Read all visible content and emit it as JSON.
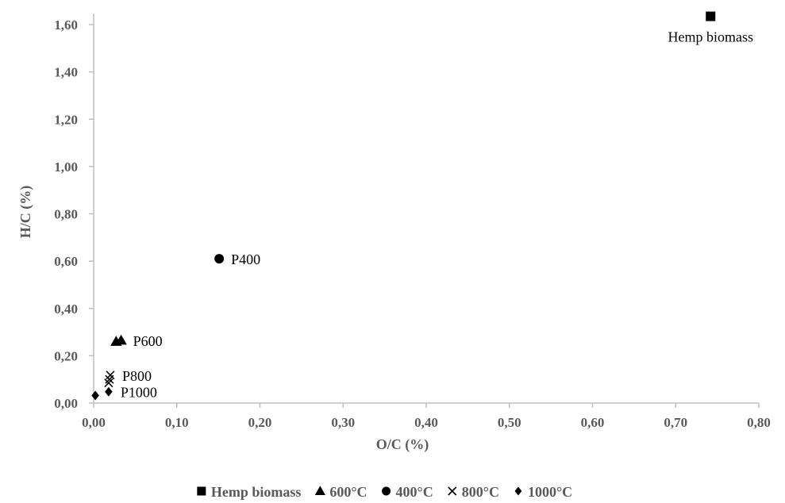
{
  "chart_data": {
    "type": "scatter",
    "xlabel": "O/C (%)",
    "ylabel": "H/C (%)",
    "xlim": [
      0,
      0.8
    ],
    "ylim": [
      0,
      1.6
    ],
    "x_ticks": [
      "0,00",
      "0,10",
      "0,20",
      "0,30",
      "0,40",
      "0,50",
      "0,60",
      "0,70",
      "0,80"
    ],
    "y_ticks": [
      "0,00",
      "0,20",
      "0,40",
      "0,60",
      "0,80",
      "1,00",
      "1,20",
      "1,40",
      "1,60"
    ],
    "x_tick_values": [
      0,
      0.1,
      0.2,
      0.3,
      0.4,
      0.5,
      0.6,
      0.7,
      0.8
    ],
    "y_tick_values": [
      0,
      0.2,
      0.4,
      0.6,
      0.8,
      1.0,
      1.2,
      1.4,
      1.6
    ],
    "legend_position": "bottom",
    "series": [
      {
        "name": "Hemp biomass",
        "marker": "square",
        "color": "#000000",
        "points": [
          {
            "x": 0.742,
            "y": 1.635
          }
        ]
      },
      {
        "name": "600°C",
        "marker": "triangle",
        "color": "#000000",
        "points": [
          {
            "x": 0.027,
            "y": 0.26
          },
          {
            "x": 0.033,
            "y": 0.265
          }
        ]
      },
      {
        "name": "400°C",
        "marker": "circle",
        "color": "#000000",
        "points": [
          {
            "x": 0.151,
            "y": 0.61
          }
        ]
      },
      {
        "name": "800°C",
        "marker": "x",
        "color": "#000000",
        "points": [
          {
            "x": 0.018,
            "y": 0.085
          },
          {
            "x": 0.019,
            "y": 0.1
          },
          {
            "x": 0.02,
            "y": 0.118
          }
        ]
      },
      {
        "name": "1000°C",
        "marker": "diamond",
        "color": "#000000",
        "points": [
          {
            "x": 0.002,
            "y": 0.032
          },
          {
            "x": 0.018,
            "y": 0.048
          }
        ]
      }
    ],
    "annotations": [
      {
        "text": "Hemp biomass",
        "x": 0.742,
        "y": 1.635,
        "anchor": "below"
      },
      {
        "text": "P400",
        "x": 0.151,
        "y": 0.61,
        "anchor": "right"
      },
      {
        "text": "P600",
        "x": 0.033,
        "y": 0.265,
        "anchor": "right"
      },
      {
        "text": "P800",
        "x": 0.02,
        "y": 0.118,
        "anchor": "right"
      },
      {
        "text": "P1000",
        "x": 0.018,
        "y": 0.048,
        "anchor": "right"
      }
    ]
  }
}
